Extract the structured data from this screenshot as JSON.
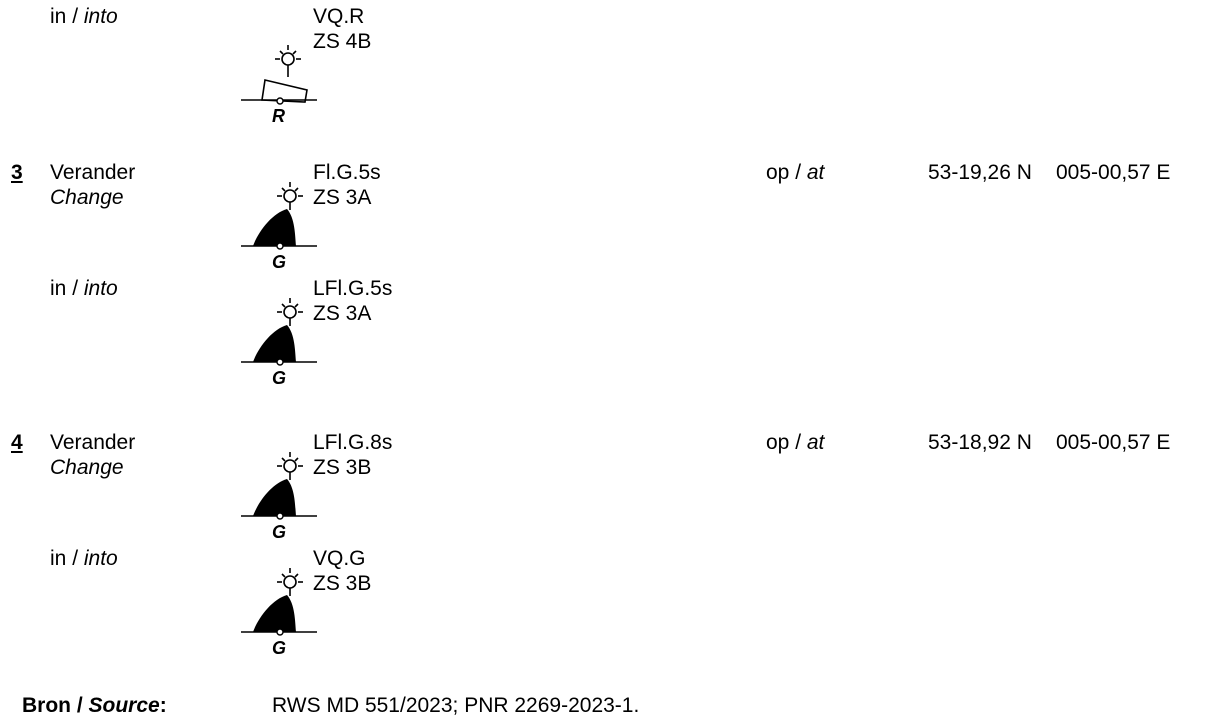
{
  "entries": [
    {
      "action_nl": "",
      "action_en": "",
      "number": "",
      "from_label": "in",
      "from_label_en": "into",
      "light": "VQ.R",
      "code": "ZS 4B",
      "buoy_type": "can-buoy-icon",
      "buoy_letter": "R",
      "pos_label": "",
      "pos_label_en": "",
      "lat": "",
      "lon": ""
    },
    {
      "number": "3",
      "action_nl": "Verander",
      "action_en": "Change",
      "light": "Fl.G.5s",
      "code": "ZS 3A",
      "buoy_type": "conical-buoy-icon",
      "buoy_letter": "G",
      "pos_label": "op",
      "pos_label_en": "at",
      "lat": "53-19,26 N",
      "lon": "005-00,57 E"
    },
    {
      "from_label": "in",
      "from_label_en": "into",
      "light": "LFl.G.5s",
      "code": "ZS 3A",
      "buoy_type": "conical-buoy-icon",
      "buoy_letter": "G"
    },
    {
      "number": "4",
      "action_nl": "Verander",
      "action_en": "Change",
      "light": "LFl.G.8s",
      "code": "ZS 3B",
      "buoy_type": "conical-buoy-icon",
      "buoy_letter": "G",
      "pos_label": "op",
      "pos_label_en": "at",
      "lat": "53-18,92 N",
      "lon": "005-00,57 E"
    },
    {
      "from_label": "in",
      "from_label_en": "into",
      "light": "VQ.G",
      "code": "ZS 3B",
      "buoy_type": "conical-buoy-icon",
      "buoy_letter": "G"
    }
  ],
  "separator": " / ",
  "source": {
    "label_nl": "Bron",
    "label_en": "Source",
    "colon": ":",
    "text": "RWS MD 551/2023; PNR 2269-2023-1."
  }
}
